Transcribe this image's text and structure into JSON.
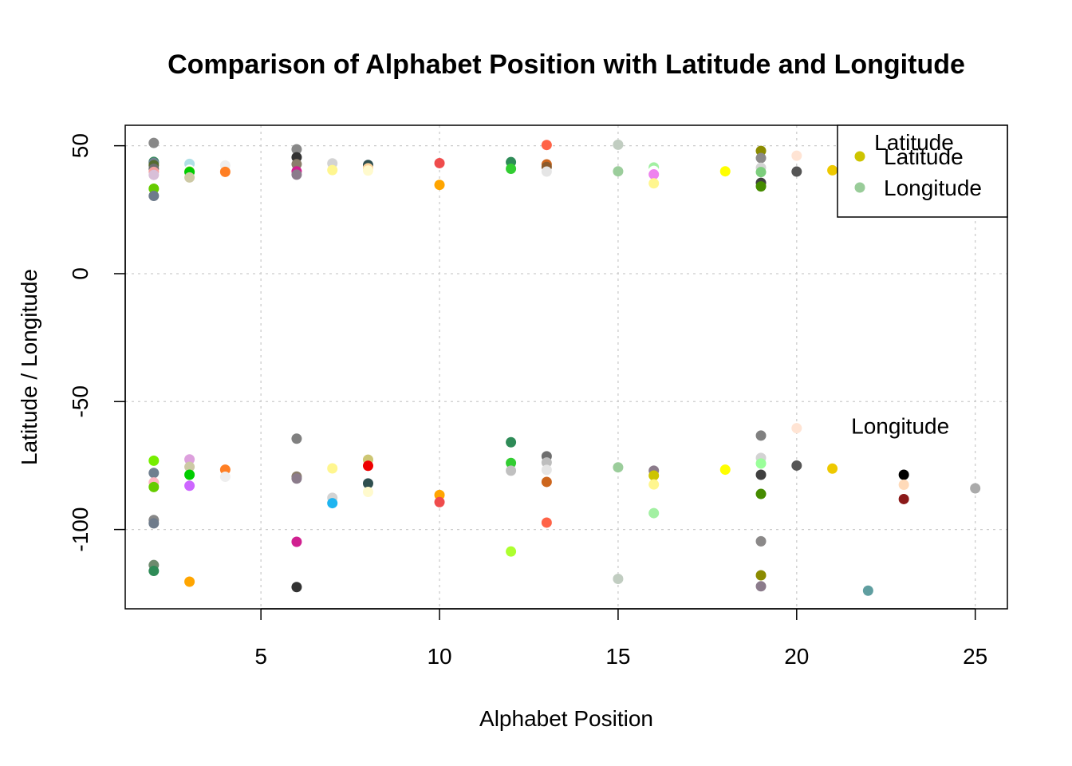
{
  "chart_data": {
    "type": "scatter",
    "title": "Comparison of Alphabet Position with Latitude and Longitude",
    "xlabel": "Alphabet Position",
    "ylabel": "Latitude / Longitude",
    "xlim": [
      1.2,
      25.9
    ],
    "ylim": [
      -131,
      58
    ],
    "x_ticks": [
      5,
      10,
      15,
      20,
      25
    ],
    "y_ticks": [
      50,
      0,
      -50,
      -100
    ],
    "grid": true,
    "legend": {
      "placement": "top-right",
      "title": "Latitude",
      "entries": [
        {
          "label": "Latitude",
          "color": "#cdc400"
        },
        {
          "label": "Longitude",
          "color": "#99cc99"
        }
      ]
    },
    "annotations": [
      {
        "text": "Longitude",
        "x": 22.9,
        "y": -59.5
      }
    ],
    "series": [
      {
        "name": "Latitude",
        "points": [
          {
            "x": 2,
            "y": 51.1,
            "color": "#888888"
          },
          {
            "x": 2,
            "y": 43.7,
            "color": "#2e8b57"
          },
          {
            "x": 2,
            "y": 43.3,
            "color": "#708090"
          },
          {
            "x": 2,
            "y": 42.4,
            "color": "#556b2f"
          },
          {
            "x": 2,
            "y": 41.0,
            "color": "#6e6e6e"
          },
          {
            "x": 2,
            "y": 39.8,
            "color": "#f4a0a0"
          },
          {
            "x": 2,
            "y": 38.6,
            "color": "#d8bfd8"
          },
          {
            "x": 2,
            "y": 33.2,
            "color": "#66cc00"
          },
          {
            "x": 2,
            "y": 30.4,
            "color": "#6e7b8b"
          },
          {
            "x": 3,
            "y": 42.9,
            "color": "#b0e0e6"
          },
          {
            "x": 3,
            "y": 40.6,
            "color": "#ffffff"
          },
          {
            "x": 3,
            "y": 39.9,
            "color": "#9acd32"
          },
          {
            "x": 3,
            "y": 39.7,
            "color": "#00cd00"
          },
          {
            "x": 3,
            "y": 37.6,
            "color": "#cdc9a5"
          },
          {
            "x": 4,
            "y": 42.3,
            "color": "#eeeeee"
          },
          {
            "x": 4,
            "y": 39.8,
            "color": "#ff7f24"
          },
          {
            "x": 6,
            "y": 48.6,
            "color": "#888888"
          },
          {
            "x": 6,
            "y": 45.5,
            "color": "#333333"
          },
          {
            "x": 6,
            "y": 42.8,
            "color": "#8b7d6b"
          },
          {
            "x": 6,
            "y": 40.0,
            "color": "#d02090"
          },
          {
            "x": 6,
            "y": 38.7,
            "color": "#8b7b8b"
          },
          {
            "x": 7,
            "y": 43.1,
            "color": "#d3d3d3"
          },
          {
            "x": 7,
            "y": 40.5,
            "color": "#fff68f"
          },
          {
            "x": 8,
            "y": 42.5,
            "color": "#2f4f4f"
          },
          {
            "x": 8,
            "y": 41.2,
            "color": "#ffd39b"
          },
          {
            "x": 8,
            "y": 40.3,
            "color": "#fffacd"
          },
          {
            "x": 10,
            "y": 43.2,
            "color": "#ef4c4c"
          },
          {
            "x": 10,
            "y": 34.7,
            "color": "#ffa500"
          },
          {
            "x": 12,
            "y": 43.6,
            "color": "#2e8b57"
          },
          {
            "x": 12,
            "y": 41.0,
            "color": "#32cd32"
          },
          {
            "x": 13,
            "y": 50.3,
            "color": "#ff6347"
          },
          {
            "x": 13,
            "y": 42.7,
            "color": "#cd661d"
          },
          {
            "x": 13,
            "y": 41.7,
            "color": "#8b5a2b"
          },
          {
            "x": 13,
            "y": 39.9,
            "color": "#e5e5e5"
          },
          {
            "x": 15,
            "y": 50.4,
            "color": "#c1cdc1"
          },
          {
            "x": 15,
            "y": 40.0,
            "color": "#9bcd9b"
          },
          {
            "x": 16,
            "y": 41.5,
            "color": "#a2f0a2"
          },
          {
            "x": 16,
            "y": 40.2,
            "color": "#ffffff"
          },
          {
            "x": 16,
            "y": 38.8,
            "color": "#ee82ee"
          },
          {
            "x": 16,
            "y": 35.3,
            "color": "#fff68f"
          },
          {
            "x": 18,
            "y": 40.0,
            "color": "#ffff00"
          },
          {
            "x": 19,
            "y": 48.0,
            "color": "#8b8b00"
          },
          {
            "x": 19,
            "y": 45.2,
            "color": "#8b8989"
          },
          {
            "x": 19,
            "y": 41.4,
            "color": "#d3d3d3"
          },
          {
            "x": 19,
            "y": 39.7,
            "color": "#7ccd7c"
          },
          {
            "x": 19,
            "y": 35.5,
            "color": "#404040"
          },
          {
            "x": 19,
            "y": 34.1,
            "color": "#458b00"
          },
          {
            "x": 20,
            "y": 46.1,
            "color": "#ffe4d4"
          },
          {
            "x": 20,
            "y": 39.9,
            "color": "#555555"
          },
          {
            "x": 21,
            "y": 40.4,
            "color": "#eec900"
          }
        ]
      },
      {
        "name": "Longitude",
        "points": [
          {
            "x": 2,
            "y": -73.1,
            "color": "#76ee00"
          },
          {
            "x": 2,
            "y": -77.9,
            "color": "#708090"
          },
          {
            "x": 2,
            "y": -81.6,
            "color": "#ffb6c1"
          },
          {
            "x": 2,
            "y": -83.4,
            "color": "#66cc00"
          },
          {
            "x": 2,
            "y": -96.3,
            "color": "#888888"
          },
          {
            "x": 2,
            "y": -97.6,
            "color": "#6e7b8b"
          },
          {
            "x": 2,
            "y": -113.9,
            "color": "#6e8b6e"
          },
          {
            "x": 2,
            "y": -116.2,
            "color": "#2e8b57"
          },
          {
            "x": 3,
            "y": -72.6,
            "color": "#dda0dd"
          },
          {
            "x": 3,
            "y": -75.5,
            "color": "#cdc9a5"
          },
          {
            "x": 3,
            "y": -78.6,
            "color": "#00cd00"
          },
          {
            "x": 3,
            "y": -82.9,
            "color": "#cd66ff"
          },
          {
            "x": 3,
            "y": -120.4,
            "color": "#ffa500"
          },
          {
            "x": 4,
            "y": -76.6,
            "color": "#ff7f24"
          },
          {
            "x": 4,
            "y": -79.4,
            "color": "#eeeeee"
          },
          {
            "x": 6,
            "y": -64.5,
            "color": "#808080"
          },
          {
            "x": 6,
            "y": -79.3,
            "color": "#8b7d6b"
          },
          {
            "x": 6,
            "y": -80.1,
            "color": "#8b7b8b"
          },
          {
            "x": 6,
            "y": -104.8,
            "color": "#d02090"
          },
          {
            "x": 6,
            "y": -122.5,
            "color": "#333333"
          },
          {
            "x": 7,
            "y": -76.1,
            "color": "#fff68f"
          },
          {
            "x": 7,
            "y": -87.6,
            "color": "#d3d3d3"
          },
          {
            "x": 7,
            "y": -89.7,
            "color": "#1eb4f0"
          },
          {
            "x": 8,
            "y": -72.7,
            "color": "#cdc673"
          },
          {
            "x": 8,
            "y": -75.1,
            "color": "#ee0000"
          },
          {
            "x": 8,
            "y": -82.0,
            "color": "#2f4f4f"
          },
          {
            "x": 8,
            "y": -85.3,
            "color": "#fffacd"
          },
          {
            "x": 10,
            "y": -86.5,
            "color": "#ffa500"
          },
          {
            "x": 10,
            "y": -89.3,
            "color": "#ef4c4c"
          },
          {
            "x": 12,
            "y": -65.9,
            "color": "#2e8b57"
          },
          {
            "x": 12,
            "y": -74.0,
            "color": "#32cd32"
          },
          {
            "x": 12,
            "y": -77.0,
            "color": "#c0c0c0"
          },
          {
            "x": 12,
            "y": -108.6,
            "color": "#adff2f"
          },
          {
            "x": 13,
            "y": -71.4,
            "color": "#6e6e6e"
          },
          {
            "x": 13,
            "y": -73.8,
            "color": "#bebebe"
          },
          {
            "x": 13,
            "y": -76.7,
            "color": "#e5e5e5"
          },
          {
            "x": 13,
            "y": -81.4,
            "color": "#cd661d"
          },
          {
            "x": 13,
            "y": -97.3,
            "color": "#ff6347"
          },
          {
            "x": 15,
            "y": -75.7,
            "color": "#9bcd9b"
          },
          {
            "x": 15,
            "y": -119.3,
            "color": "#c1cdc1"
          },
          {
            "x": 16,
            "y": -75.6,
            "color": "#ffffff"
          },
          {
            "x": 16,
            "y": -77.0,
            "color": "#8b7b8b"
          },
          {
            "x": 16,
            "y": -78.9,
            "color": "#cdc400"
          },
          {
            "x": 16,
            "y": -82.4,
            "color": "#fff68f"
          },
          {
            "x": 16,
            "y": -93.6,
            "color": "#a2f0a2"
          },
          {
            "x": 18,
            "y": -76.6,
            "color": "#ffff00"
          },
          {
            "x": 19,
            "y": -63.3,
            "color": "#808080"
          },
          {
            "x": 19,
            "y": -72.0,
            "color": "#d3d3d3"
          },
          {
            "x": 19,
            "y": -74.2,
            "color": "#9aff9a"
          },
          {
            "x": 19,
            "y": -78.6,
            "color": "#404040"
          },
          {
            "x": 19,
            "y": -86.1,
            "color": "#458b00"
          },
          {
            "x": 19,
            "y": -104.6,
            "color": "#8b8989"
          },
          {
            "x": 19,
            "y": -117.9,
            "color": "#8b8b00"
          },
          {
            "x": 19,
            "y": -122.2,
            "color": "#8b7b8b"
          },
          {
            "x": 20,
            "y": -60.4,
            "color": "#ffe4d4"
          },
          {
            "x": 20,
            "y": -75.0,
            "color": "#555555"
          },
          {
            "x": 21,
            "y": -76.2,
            "color": "#eec900"
          },
          {
            "x": 22,
            "y": -123.9,
            "color": "#5f9ea0"
          },
          {
            "x": 23,
            "y": -78.6,
            "color": "#000000"
          },
          {
            "x": 23,
            "y": -82.5,
            "color": "#ffdab9"
          },
          {
            "x": 23,
            "y": -88.1,
            "color": "#8b1a1a"
          },
          {
            "x": 25,
            "y": -83.9,
            "color": "#aaaaaa"
          }
        ]
      }
    ]
  }
}
